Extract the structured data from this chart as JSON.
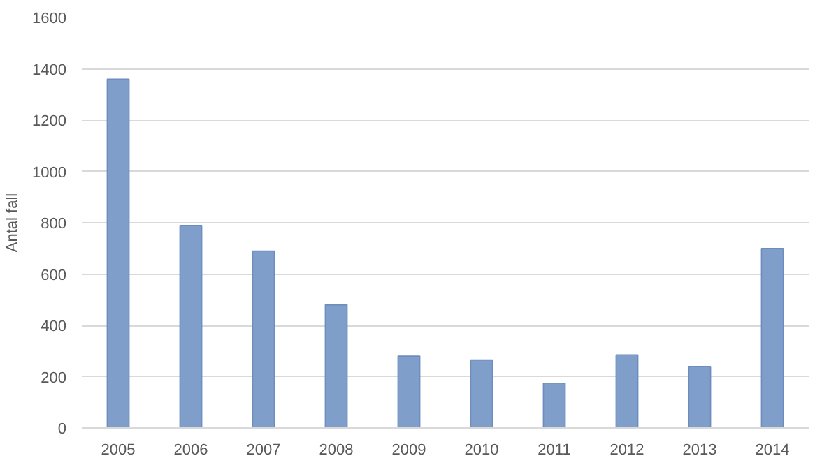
{
  "chart_data": {
    "type": "bar",
    "ylabel": "Antal fall",
    "categories": [
      "2005",
      "2006",
      "2007",
      "2008",
      "2009",
      "2010",
      "2011",
      "2012",
      "2013",
      "2014"
    ],
    "values": [
      1360,
      790,
      690,
      480,
      280,
      265,
      175,
      285,
      240,
      700
    ],
    "color": "#7f9ec9",
    "ylim": [
      0,
      1600
    ],
    "yticks": [
      0,
      200,
      400,
      600,
      800,
      1000,
      1200,
      1400,
      1600
    ],
    "grid": "y"
  }
}
